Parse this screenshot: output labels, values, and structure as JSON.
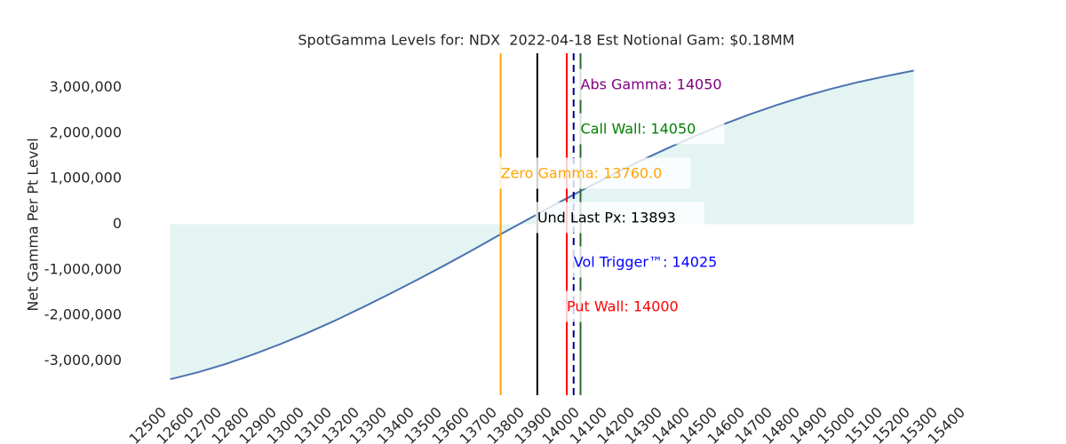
{
  "chart_data": {
    "type": "area",
    "title": "SpotGamma Levels for: NDX  2022-04-18 Est Notional Gam: $0.18MM",
    "ylabel": "Net Gamma Per Pt Level",
    "x": [
      12560,
      12660,
      12760,
      12860,
      12960,
      13060,
      13160,
      13260,
      13360,
      13460,
      13560,
      13660,
      13760,
      13860,
      13960,
      14060,
      14160,
      14260,
      14360,
      14460,
      14560,
      14660,
      14760,
      14860,
      14960,
      15060,
      15160,
      15260
    ],
    "values": [
      -3400000,
      -3250000,
      -3070000,
      -2860000,
      -2630000,
      -2380000,
      -2110000,
      -1820000,
      -1520000,
      -1210000,
      -890000,
      -560000,
      -220000,
      110000,
      440000,
      760000,
      1070000,
      1370000,
      1650000,
      1920000,
      2170000,
      2400000,
      2610000,
      2800000,
      2970000,
      3120000,
      3250000,
      3370000
    ],
    "color": "#4c72b0",
    "fill_color": "#e3f4f2",
    "xlim": [
      12500,
      15400
    ],
    "xticks": [
      12500,
      12600,
      12700,
      12800,
      12900,
      13000,
      13100,
      13200,
      13300,
      13400,
      13500,
      13600,
      13700,
      13800,
      13900,
      14000,
      14100,
      14200,
      14300,
      14400,
      14500,
      14600,
      14700,
      14800,
      14900,
      15000,
      15100,
      15200,
      15300,
      15400
    ],
    "ylim": [
      -3750000,
      3750000
    ],
    "yticks": [
      {
        "value": -3000000,
        "label": "-3,000,000"
      },
      {
        "value": -2000000,
        "label": "-2,000,000"
      },
      {
        "value": -1000000,
        "label": "-1,000,000"
      },
      0,
      {
        "value": 1000000,
        "label": "1,000,000"
      },
      {
        "value": 2000000,
        "label": "2,000,000"
      },
      {
        "value": 3000000,
        "label": "3,000,000"
      }
    ],
    "levels": [
      {
        "label": "Abs Gamma: 14050",
        "value": 14050,
        "color": "#800080",
        "line_color": "#1a1a6e",
        "style": "dashed"
      },
      {
        "label": "Call Wall: 14050",
        "value": 14050,
        "color": "#008000",
        "line_color": "#2e6b2e",
        "style": "solid"
      },
      {
        "label": "Zero Gamma: 13760.0",
        "value": 13760.0,
        "color": "#ffa500",
        "line_color": "#ffa500",
        "style": "solid"
      },
      {
        "label": "Und Last Px: 13893",
        "value": 13893,
        "color": "#000000",
        "line_color": "#000000",
        "style": "solid"
      },
      {
        "label": "Vol Trigger™: 14025",
        "value": 14025,
        "color": "#0000ff",
        "line_color": "#00008b",
        "style": "dashed"
      },
      {
        "label": "Put Wall: 14000",
        "value": 14000,
        "color": "#ff0000",
        "line_color": "#ff0000",
        "style": "solid"
      }
    ]
  }
}
